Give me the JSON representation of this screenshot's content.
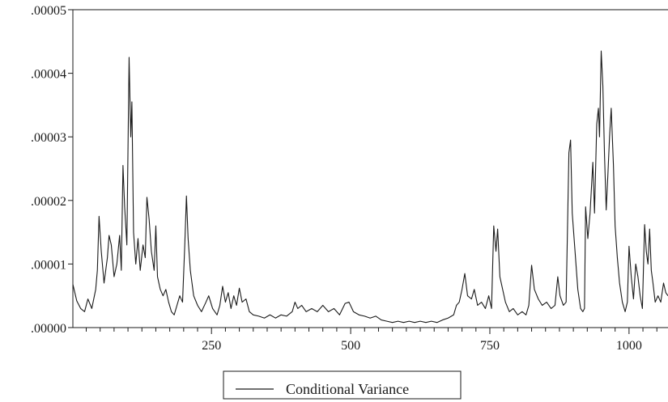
{
  "chart_data": {
    "type": "line",
    "title": "",
    "xlabel": "",
    "ylabel": "",
    "xlim": [
      1,
      1070
    ],
    "ylim": [
      0,
      5e-05
    ],
    "grid": false,
    "legend_position": "bottom-center",
    "x_ticks": [
      250,
      500,
      750,
      1000
    ],
    "x_tick_labels": [
      "250",
      "500",
      "750",
      "1000"
    ],
    "y_ticks": [
      0,
      1e-05,
      2e-05,
      3e-05,
      4e-05,
      5e-05
    ],
    "y_tick_labels": [
      ".00000",
      ".00001",
      ".00002",
      ".00003",
      ".00004",
      ".00005"
    ],
    "series": [
      {
        "name": "Conditional Variance",
        "color": "#1a1a1a",
        "points": [
          [
            1,
            6.8e-06
          ],
          [
            8,
            4.2e-06
          ],
          [
            15,
            3e-06
          ],
          [
            22,
            2.5e-06
          ],
          [
            28,
            4.5e-06
          ],
          [
            35,
            3e-06
          ],
          [
            42,
            6e-06
          ],
          [
            45,
            9e-06
          ],
          [
            48,
            1.75e-05
          ],
          [
            52,
            1.2e-05
          ],
          [
            57,
            7e-06
          ],
          [
            63,
            1.1e-05
          ],
          [
            66,
            1.45e-05
          ],
          [
            70,
            1.3e-05
          ],
          [
            75,
            8e-06
          ],
          [
            80,
            1e-05
          ],
          [
            85,
            1.45e-05
          ],
          [
            88,
            9e-06
          ],
          [
            91,
            2.55e-05
          ],
          [
            94,
            1.9e-05
          ],
          [
            98,
            1.3e-05
          ],
          [
            100,
            2.8e-05
          ],
          [
            102,
            4.25e-05
          ],
          [
            105,
            3e-05
          ],
          [
            107,
            3.55e-05
          ],
          [
            110,
            1.5e-05
          ],
          [
            114,
            1e-05
          ],
          [
            118,
            1.4e-05
          ],
          [
            122,
            9e-06
          ],
          [
            127,
            1.3e-05
          ],
          [
            131,
            1.1e-05
          ],
          [
            134,
            2.05e-05
          ],
          [
            138,
            1.7e-05
          ],
          [
            142,
            1.2e-05
          ],
          [
            147,
            9e-06
          ],
          [
            150,
            1.6e-05
          ],
          [
            153,
            8e-06
          ],
          [
            158,
            6e-06
          ],
          [
            163,
            5e-06
          ],
          [
            168,
            6e-06
          ],
          [
            173,
            4e-06
          ],
          [
            178,
            2.5e-06
          ],
          [
            183,
            2e-06
          ],
          [
            188,
            3.5e-06
          ],
          [
            193,
            5e-06
          ],
          [
            198,
            4e-06
          ],
          [
            202,
            1.3e-05
          ],
          [
            205,
            2.07e-05
          ],
          [
            208,
            1.4e-05
          ],
          [
            212,
            9e-06
          ],
          [
            218,
            5e-06
          ],
          [
            225,
            3.5e-06
          ],
          [
            232,
            2.5e-06
          ],
          [
            240,
            4e-06
          ],
          [
            245,
            5e-06
          ],
          [
            252,
            3e-06
          ],
          [
            260,
            2e-06
          ],
          [
            265,
            3.5e-06
          ],
          [
            270,
            6.5e-06
          ],
          [
            275,
            4e-06
          ],
          [
            280,
            5.5e-06
          ],
          [
            285,
            3e-06
          ],
          [
            290,
            5e-06
          ],
          [
            295,
            3.5e-06
          ],
          [
            300,
            6.2e-06
          ],
          [
            305,
            4e-06
          ],
          [
            312,
            4.5e-06
          ],
          [
            318,
            2.5e-06
          ],
          [
            325,
            2e-06
          ],
          [
            335,
            1.8e-06
          ],
          [
            345,
            1.5e-06
          ],
          [
            355,
            2e-06
          ],
          [
            365,
            1.5e-06
          ],
          [
            375,
            2e-06
          ],
          [
            385,
            1.8e-06
          ],
          [
            395,
            2.5e-06
          ],
          [
            400,
            4e-06
          ],
          [
            405,
            3e-06
          ],
          [
            412,
            3.5e-06
          ],
          [
            420,
            2.5e-06
          ],
          [
            430,
            3e-06
          ],
          [
            440,
            2.5e-06
          ],
          [
            450,
            3.5e-06
          ],
          [
            460,
            2.5e-06
          ],
          [
            470,
            3e-06
          ],
          [
            480,
            2e-06
          ],
          [
            490,
            3.8e-06
          ],
          [
            497,
            4e-06
          ],
          [
            505,
            2.5e-06
          ],
          [
            515,
            2e-06
          ],
          [
            525,
            1.8e-06
          ],
          [
            535,
            1.5e-06
          ],
          [
            545,
            1.8e-06
          ],
          [
            555,
            1.2e-06
          ],
          [
            565,
            1e-06
          ],
          [
            575,
            8e-07
          ],
          [
            585,
            1e-06
          ],
          [
            595,
            8e-07
          ],
          [
            605,
            1e-06
          ],
          [
            615,
            8e-07
          ],
          [
            625,
            1e-06
          ],
          [
            635,
            8e-07
          ],
          [
            645,
            1e-06
          ],
          [
            655,
            8e-07
          ],
          [
            665,
            1.2e-06
          ],
          [
            675,
            1.5e-06
          ],
          [
            685,
            2e-06
          ],
          [
            690,
            3.5e-06
          ],
          [
            695,
            4e-06
          ],
          [
            700,
            6e-06
          ],
          [
            705,
            8.5e-06
          ],
          [
            710,
            5e-06
          ],
          [
            717,
            4.5e-06
          ],
          [
            722,
            6e-06
          ],
          [
            728,
            3.5e-06
          ],
          [
            735,
            4e-06
          ],
          [
            742,
            3e-06
          ],
          [
            748,
            5e-06
          ],
          [
            753,
            3e-06
          ],
          [
            757,
            1.6e-05
          ],
          [
            761,
            1.2e-05
          ],
          [
            764,
            1.55e-05
          ],
          [
            768,
            8e-06
          ],
          [
            773,
            6e-06
          ],
          [
            778,
            4e-06
          ],
          [
            785,
            2.5e-06
          ],
          [
            792,
            3e-06
          ],
          [
            800,
            2e-06
          ],
          [
            808,
            2.5e-06
          ],
          [
            815,
            2e-06
          ],
          [
            820,
            3.5e-06
          ],
          [
            825,
            9.8e-06
          ],
          [
            830,
            6e-06
          ],
          [
            837,
            4.5e-06
          ],
          [
            844,
            3.5e-06
          ],
          [
            852,
            4e-06
          ],
          [
            860,
            3e-06
          ],
          [
            867,
            3.5e-06
          ],
          [
            872,
            8e-06
          ],
          [
            876,
            5e-06
          ],
          [
            882,
            3.5e-06
          ],
          [
            887,
            4e-06
          ],
          [
            892,
            2.75e-05
          ],
          [
            895,
            2.95e-05
          ],
          [
            898,
            1.8e-05
          ],
          [
            903,
            1.2e-05
          ],
          [
            908,
            6e-06
          ],
          [
            913,
            3e-06
          ],
          [
            917,
            2.5e-06
          ],
          [
            920,
            3e-06
          ],
          [
            922,
            1.9e-05
          ],
          [
            926,
            1.4e-05
          ],
          [
            930,
            1.8e-05
          ],
          [
            935,
            2.6e-05
          ],
          [
            938,
            1.8e-05
          ],
          [
            942,
            3.2e-05
          ],
          [
            945,
            3.45e-05
          ],
          [
            947,
            3e-05
          ],
          [
            950,
            4.35e-05
          ],
          [
            953,
            3.8e-05
          ],
          [
            956,
            2.7e-05
          ],
          [
            959,
            1.85e-05
          ],
          [
            962,
            2.4e-05
          ],
          [
            965,
            3e-05
          ],
          [
            968,
            3.45e-05
          ],
          [
            972,
            2.55e-05
          ],
          [
            975,
            1.6e-05
          ],
          [
            979,
            1.1e-05
          ],
          [
            983,
            7e-06
          ],
          [
            988,
            4e-06
          ],
          [
            993,
            2.5e-06
          ],
          [
            997,
            4e-06
          ],
          [
            1000,
            1.28e-05
          ],
          [
            1004,
            8e-06
          ],
          [
            1008,
            4.5e-06
          ],
          [
            1012,
            1e-05
          ],
          [
            1016,
            8e-06
          ],
          [
            1020,
            5e-06
          ],
          [
            1024,
            3e-06
          ],
          [
            1028,
            1.62e-05
          ],
          [
            1031,
            1.2e-05
          ],
          [
            1034,
            1e-05
          ],
          [
            1037,
            1.55e-05
          ],
          [
            1040,
            9e-06
          ],
          [
            1043,
            7e-06
          ],
          [
            1047,
            4e-06
          ],
          [
            1052,
            5e-06
          ],
          [
            1057,
            4e-06
          ],
          [
            1062,
            7e-06
          ],
          [
            1066,
            5.5e-06
          ],
          [
            1070,
            5e-06
          ]
        ]
      }
    ]
  }
}
